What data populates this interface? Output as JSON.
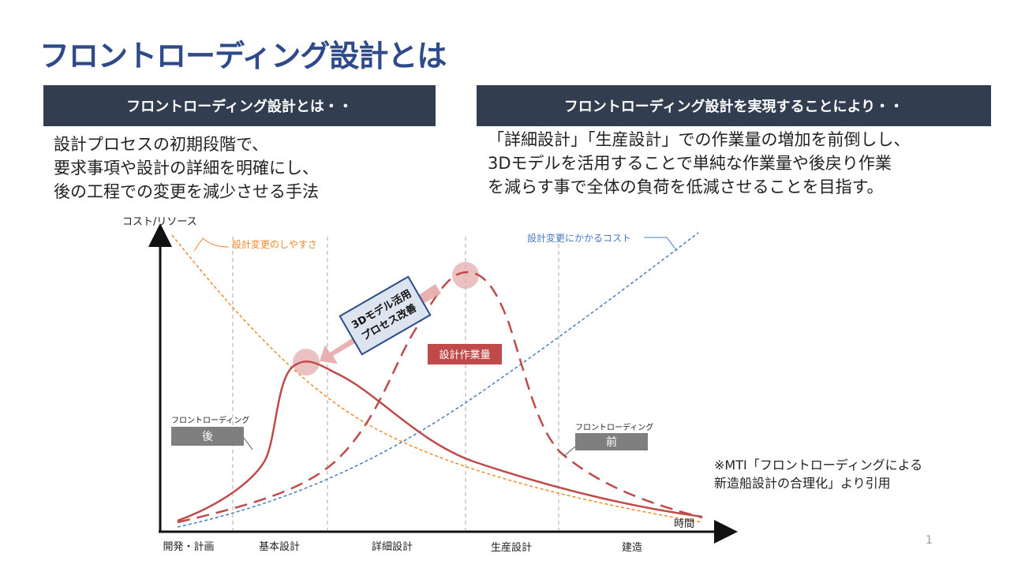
{
  "slide": {
    "title": "フロントローディング設計とは",
    "page_number": "1"
  },
  "left_panel": {
    "heading": "フロントローディング設計とは・・",
    "lines": [
      "設計プロセスの初期段階で、",
      "要求事項や設計の詳細を明確にし、",
      "後の工程での変更を減少させる手法"
    ]
  },
  "right_panel": {
    "heading": "フロントローディング設計を実現することにより・・",
    "lines": [
      "「詳細設計」「生産設計」での作業量の増加を前倒しし、",
      "3Dモデルを活用することで単純な作業量や後戻り作業",
      "を減らす事で全体の負荷を低減させることを目指す。"
    ]
  },
  "diagram": {
    "y_axis_label": "コスト/リソース",
    "x_axis_label": "時間",
    "phases": [
      "開発・計画",
      "基本設計",
      "詳細設計",
      "生産設計",
      "建造"
    ],
    "label_ease_of_change": "設計変更のしやすさ",
    "label_cost_of_change": "設計変更にかかるコスト",
    "label_work_volume": "設計作業量",
    "callout_3d": [
      "3Dモデル活用",
      "プロセス改善"
    ],
    "after_label_small": "フロントローディング",
    "after_label_big": "後",
    "before_label_small": "フロントローディング",
    "before_label_big": "前",
    "colors": {
      "orange": "#f08a2c",
      "blue": "#4a7cc0",
      "red": "#c04a4a",
      "axis": "#111111",
      "gray_box": "#7f7f7f",
      "callout_fill": "#dce4f0",
      "callout_border": "#2e4a8a"
    }
  },
  "source_note": {
    "lines": [
      "※MTI「フロントローディングによる",
      "新造船設計の合理化」より引用"
    ]
  }
}
